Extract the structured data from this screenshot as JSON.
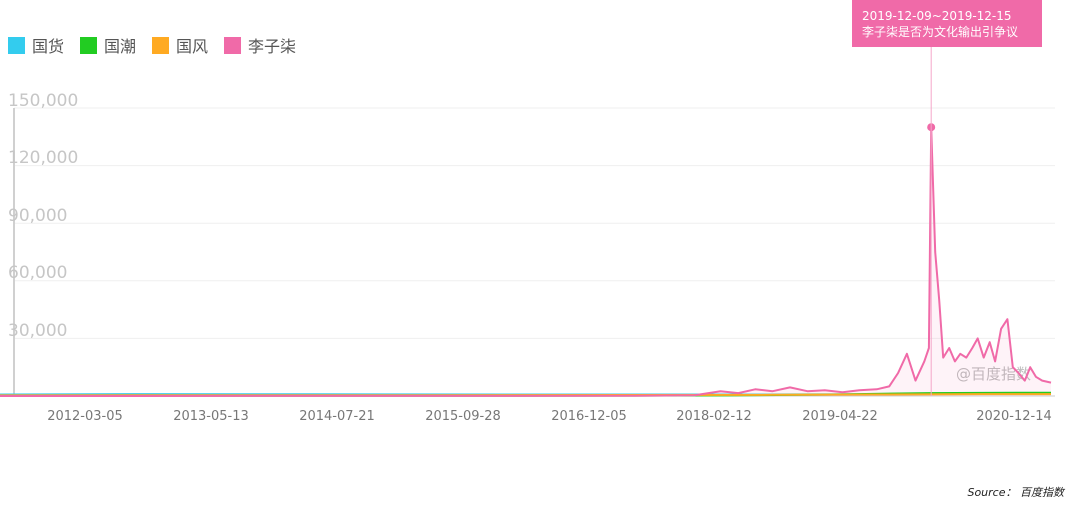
{
  "legend": [
    {
      "name": "国货",
      "color": "#33ccee"
    },
    {
      "name": "国潮",
      "color": "#22cc22"
    },
    {
      "name": "国风",
      "color": "#ffaa22"
    },
    {
      "name": "李子柒",
      "color": "#f06aa8"
    }
  ],
  "tooltip": {
    "date_range": "2019-12-09~2019-12-15",
    "text": "李子柒是否为文化输出引争议"
  },
  "watermark": "@百度指数",
  "source": "Source：  百度指数",
  "chart_data": {
    "type": "line",
    "x_ticks": [
      "2012-03-05",
      "2013-05-13",
      "2014-07-21",
      "2015-09-28",
      "2016-12-05",
      "2018-02-12",
      "2019-04-22",
      "2020-12-14"
    ],
    "y_ticks": [
      "150,000",
      "120,000",
      "90,000",
      "60,000",
      "30,000"
    ],
    "ylim": [
      0,
      150000
    ],
    "xlim": [
      "2011-01-01",
      "2021-02-15"
    ],
    "grid": true,
    "legend_position": "top-left",
    "highlight_point": {
      "x": "2019-12-09",
      "y": 140000
    },
    "series": [
      {
        "name": "国货",
        "color": "#33ccee",
        "x": [
          "2011-01-01",
          "2012-06-01",
          "2014-01-01",
          "2016-01-01",
          "2018-01-01",
          "2019-06-01",
          "2020-06-01",
          "2021-02-01"
        ],
        "y": [
          800,
          1000,
          900,
          800,
          800,
          900,
          1200,
          1200
        ]
      },
      {
        "name": "国潮",
        "color": "#22cc22",
        "x": [
          "2011-01-01",
          "2014-01-01",
          "2016-01-01",
          "2018-01-01",
          "2019-01-01",
          "2019-12-01",
          "2020-06-01",
          "2021-02-01"
        ],
        "y": [
          100,
          100,
          100,
          300,
          800,
          1500,
          1600,
          1700
        ]
      },
      {
        "name": "国风",
        "color": "#ffaa22",
        "x": [
          "2011-01-01",
          "2013-01-01",
          "2015-01-01",
          "2017-01-01",
          "2018-06-01",
          "2019-06-01",
          "2020-06-01",
          "2021-02-01"
        ],
        "y": [
          300,
          400,
          400,
          500,
          600,
          800,
          1000,
          1000
        ]
      },
      {
        "name": "李子柒",
        "color": "#f06aa8",
        "x": [
          "2011-01-01",
          "2017-01-01",
          "2017-09-01",
          "2017-12-01",
          "2018-02-01",
          "2018-04-01",
          "2018-06-01",
          "2018-08-01",
          "2018-10-01",
          "2018-12-01",
          "2019-02-01",
          "2019-04-01",
          "2019-06-01",
          "2019-07-15",
          "2019-08-15",
          "2019-09-15",
          "2019-10-15",
          "2019-11-15",
          "2019-12-01",
          "2019-12-09",
          "2019-12-23",
          "2020-01-06",
          "2020-01-20",
          "2020-02-10",
          "2020-03-01",
          "2020-03-20",
          "2020-04-10",
          "2020-05-01",
          "2020-05-20",
          "2020-06-10",
          "2020-07-01",
          "2020-07-20",
          "2020-08-10",
          "2020-09-01",
          "2020-09-20",
          "2020-10-10",
          "2020-11-01",
          "2020-11-20",
          "2020-12-10",
          "2021-01-01",
          "2021-02-01"
        ],
        "y": [
          0,
          100,
          400,
          2500,
          1500,
          3500,
          2500,
          4500,
          2500,
          3000,
          2000,
          3000,
          3500,
          5000,
          12000,
          22000,
          8000,
          18000,
          25000,
          140000,
          75000,
          50000,
          20000,
          25000,
          18000,
          22000,
          20000,
          25000,
          30000,
          20000,
          28000,
          18000,
          35000,
          40000,
          15000,
          12000,
          8000,
          15000,
          10000,
          8000,
          7000
        ]
      }
    ]
  }
}
